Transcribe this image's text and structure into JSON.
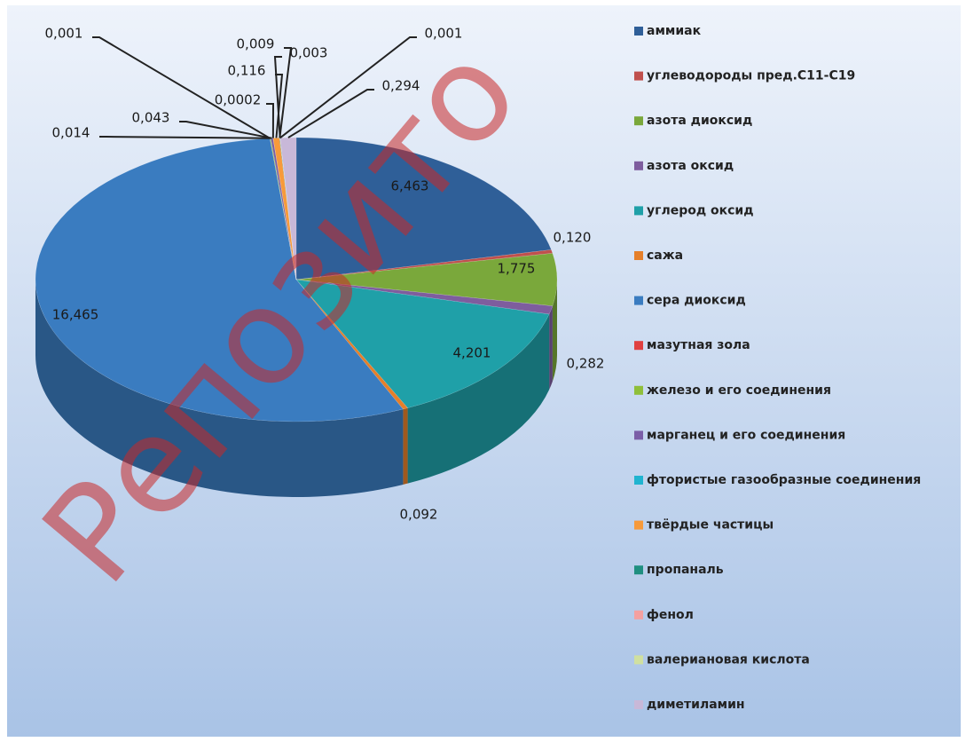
{
  "chart_data": {
    "type": "pie",
    "watermark": "Репозито",
    "categories": [
      "аммиак",
      "углеводороды пред.С11-С19",
      "азота диоксид",
      "азота оксид",
      "углерод оксид",
      "сажа",
      "сера диоксид",
      "мазутная зола",
      "железо и его соединения",
      "марганец и его соединения",
      "фтористые газообразные соединения",
      "твёрдые частицы",
      "пропаналь",
      "фенол",
      "валериановая кислота",
      "диметиламин"
    ],
    "values": [
      6.463,
      0.12,
      1.775,
      0.282,
      4.201,
      0.092,
      16.465,
      0.001,
      0.014,
      0.043,
      0.0002,
      0.116,
      0.009,
      0.003,
      0.001,
      0.294
    ],
    "value_labels": [
      "6,463",
      "0,120",
      "1,775",
      "0,282",
      "4,201",
      "0,092",
      "16,465",
      "0,001",
      "0,014",
      "0,043",
      "0,0002",
      "0,116",
      "0,009",
      "0,003",
      "0,001",
      "0,294"
    ],
    "colors": [
      "#2f5f98",
      "#c0504d",
      "#7aa83b",
      "#7e5d9e",
      "#1fa0a8",
      "#e57f2a",
      "#3a7cc0",
      "#e04040",
      "#8fbf3a",
      "#7b5ea7",
      "#20b4d0",
      "#f79a3a",
      "#1f8f80",
      "#f4a0a0",
      "#d0e0a0",
      "#c8b8d8"
    ],
    "legend": "right"
  }
}
